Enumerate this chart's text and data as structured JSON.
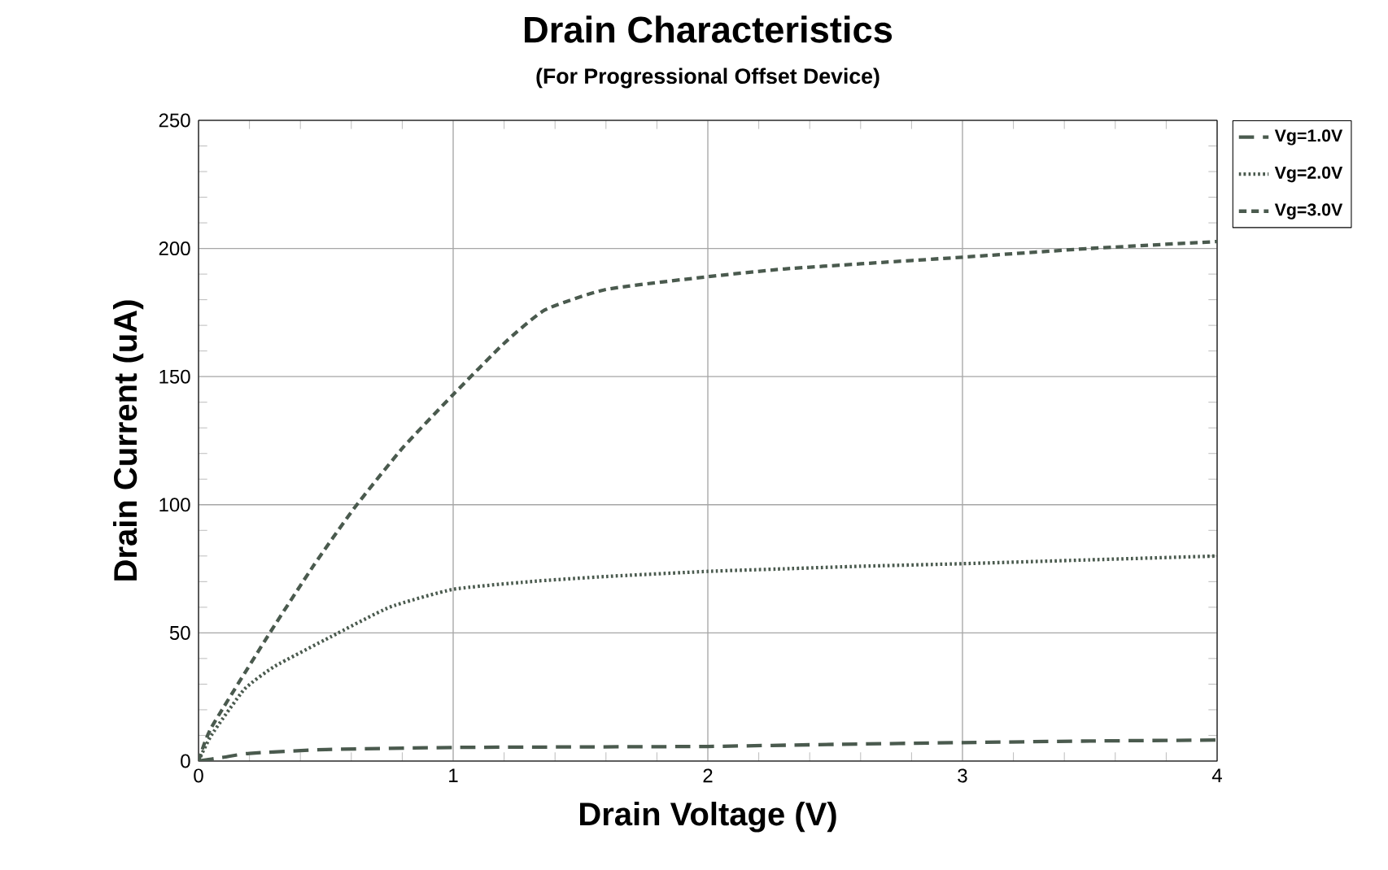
{
  "chart_data": {
    "type": "line",
    "title": "Drain Characteristics",
    "subtitle": "(For Progressional Offset Device)",
    "xlabel": "Drain Voltage (V)",
    "ylabel": "Drain Current (uA)",
    "xlim": [
      0,
      4
    ],
    "ylim": [
      0,
      250
    ],
    "xticks": [
      0,
      1,
      2,
      3,
      4
    ],
    "yticks": [
      0,
      50,
      100,
      150,
      200,
      250
    ],
    "grid": true,
    "legend": "top right",
    "series": [
      {
        "name": "Vg=1.0V",
        "color": "#4a5a4e",
        "line_style": "dashed",
        "x": [
          0,
          0.1,
          0.2,
          0.5,
          1,
          1.5,
          2,
          2.5,
          3,
          3.5,
          4
        ],
        "values": [
          0,
          1.5,
          3,
          4.5,
          5.3,
          5.5,
          5.7,
          6.5,
          7.2,
          7.8,
          8.2
        ]
      },
      {
        "name": "Vg=2.0V",
        "color": "#4a5a4e",
        "line_style": "dotted",
        "x": [
          0,
          0.05,
          0.18,
          0.3,
          0.52,
          0.75,
          1,
          1.3,
          1.6,
          2,
          2.3,
          2.6,
          3,
          3.5,
          4
        ],
        "values": [
          0,
          10,
          28,
          37,
          48.5,
          60,
          67,
          70,
          72,
          74,
          75,
          76,
          77,
          78.5,
          80
        ]
      },
      {
        "name": "Vg=3.0V",
        "color": "#4a5a4e",
        "line_style": "dashed",
        "x": [
          0,
          0.05,
          0.28,
          0.45,
          0.61,
          0.8,
          1,
          1.2,
          1.36,
          1.6,
          2,
          2.3,
          2.6,
          3,
          3.5,
          4
        ],
        "values": [
          0,
          13,
          50,
          76,
          98.5,
          122,
          143,
          163,
          176,
          184,
          189,
          192,
          194,
          196.6,
          200,
          202.7
        ]
      }
    ]
  }
}
